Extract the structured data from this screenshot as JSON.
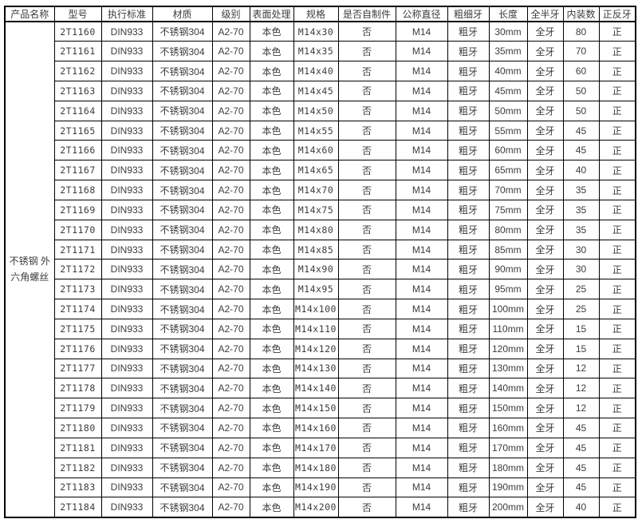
{
  "colors": {
    "border": "#000000",
    "text": "#3c3c3c",
    "background": "#ffffff"
  },
  "table": {
    "product_name": "不锈钢 外六角螺丝",
    "headers": [
      "产品名称",
      "型号",
      "执行标准",
      "材质",
      "级别",
      "表面处理",
      "规格",
      "是否自制件",
      "公称直径",
      "粗细牙",
      "长度",
      "全半牙",
      "内装数",
      "正反牙"
    ],
    "rows": [
      [
        "2T1160",
        "DIN933",
        "不锈钢304",
        "A2-70",
        "本色",
        "M14x30",
        "否",
        "M14",
        "粗牙",
        "30mm",
        "全牙",
        "80",
        "正"
      ],
      [
        "2T1161",
        "DIN933",
        "不锈钢304",
        "A2-70",
        "本色",
        "M14x35",
        "否",
        "M14",
        "粗牙",
        "35mm",
        "全牙",
        "70",
        "正"
      ],
      [
        "2T1162",
        "DIN933",
        "不锈钢304",
        "A2-70",
        "本色",
        "M14x40",
        "否",
        "M14",
        "粗牙",
        "40mm",
        "全牙",
        "60",
        "正"
      ],
      [
        "2T1163",
        "DIN933",
        "不锈钢304",
        "A2-70",
        "本色",
        "M14x45",
        "否",
        "M14",
        "粗牙",
        "45mm",
        "全牙",
        "50",
        "正"
      ],
      [
        "2T1164",
        "DIN933",
        "不锈钢304",
        "A2-70",
        "本色",
        "M14x50",
        "否",
        "M14",
        "粗牙",
        "50mm",
        "全牙",
        "50",
        "正"
      ],
      [
        "2T1165",
        "DIN933",
        "不锈钢304",
        "A2-70",
        "本色",
        "M14x55",
        "否",
        "M14",
        "粗牙",
        "55mm",
        "全牙",
        "45",
        "正"
      ],
      [
        "2T1166",
        "DIN933",
        "不锈钢304",
        "A2-70",
        "本色",
        "M14x60",
        "否",
        "M14",
        "粗牙",
        "60mm",
        "全牙",
        "45",
        "正"
      ],
      [
        "2T1167",
        "DIN933",
        "不锈钢304",
        "A2-70",
        "本色",
        "M14x65",
        "否",
        "M14",
        "粗牙",
        "65mm",
        "全牙",
        "40",
        "正"
      ],
      [
        "2T1168",
        "DIN933",
        "不锈钢304",
        "A2-70",
        "本色",
        "M14x70",
        "否",
        "M14",
        "粗牙",
        "70mm",
        "全牙",
        "35",
        "正"
      ],
      [
        "2T1169",
        "DIN933",
        "不锈钢304",
        "A2-70",
        "本色",
        "M14x75",
        "否",
        "M14",
        "粗牙",
        "75mm",
        "全牙",
        "35",
        "正"
      ],
      [
        "2T1170",
        "DIN933",
        "不锈钢304",
        "A2-70",
        "本色",
        "M14x80",
        "否",
        "M14",
        "粗牙",
        "80mm",
        "全牙",
        "35",
        "正"
      ],
      [
        "2T1171",
        "DIN933",
        "不锈钢304",
        "A2-70",
        "本色",
        "M14x85",
        "否",
        "M14",
        "粗牙",
        "85mm",
        "全牙",
        "30",
        "正"
      ],
      [
        "2T1172",
        "DIN933",
        "不锈钢304",
        "A2-70",
        "本色",
        "M14x90",
        "否",
        "M14",
        "粗牙",
        "90mm",
        "全牙",
        "30",
        "正"
      ],
      [
        "2T1173",
        "DIN933",
        "不锈钢304",
        "A2-70",
        "本色",
        "M14x95",
        "否",
        "M14",
        "粗牙",
        "95mm",
        "全牙",
        "25",
        "正"
      ],
      [
        "2T1174",
        "DIN933",
        "不锈钢304",
        "A2-70",
        "本色",
        "M14x100",
        "否",
        "M14",
        "粗牙",
        "100mm",
        "全牙",
        "25",
        "正"
      ],
      [
        "2T1175",
        "DIN933",
        "不锈钢304",
        "A2-70",
        "本色",
        "M14x110",
        "否",
        "M14",
        "粗牙",
        "110mm",
        "全牙",
        "15",
        "正"
      ],
      [
        "2T1176",
        "DIN933",
        "不锈钢304",
        "A2-70",
        "本色",
        "M14x120",
        "否",
        "M14",
        "粗牙",
        "120mm",
        "全牙",
        "15",
        "正"
      ],
      [
        "2T1177",
        "DIN933",
        "不锈钢304",
        "A2-70",
        "本色",
        "M14x130",
        "否",
        "M14",
        "粗牙",
        "130mm",
        "全牙",
        "12",
        "正"
      ],
      [
        "2T1178",
        "DIN933",
        "不锈钢304",
        "A2-70",
        "本色",
        "M14x140",
        "否",
        "M14",
        "粗牙",
        "140mm",
        "全牙",
        "12",
        "正"
      ],
      [
        "2T1179",
        "DIN933",
        "不锈钢304",
        "A2-70",
        "本色",
        "M14x150",
        "否",
        "M14",
        "粗牙",
        "150mm",
        "全牙",
        "12",
        "正"
      ],
      [
        "2T1180",
        "DIN933",
        "不锈钢304",
        "A2-70",
        "本色",
        "M14x160",
        "否",
        "M14",
        "粗牙",
        "160mm",
        "全牙",
        "45",
        "正"
      ],
      [
        "2T1181",
        "DIN933",
        "不锈钢304",
        "A2-70",
        "本色",
        "M14x170",
        "否",
        "M14",
        "粗牙",
        "170mm",
        "全牙",
        "45",
        "正"
      ],
      [
        "2T1182",
        "DIN933",
        "不锈钢304",
        "A2-70",
        "本色",
        "M14x180",
        "否",
        "M14",
        "粗牙",
        "180mm",
        "全牙",
        "45",
        "正"
      ],
      [
        "2T1183",
        "DIN933",
        "不锈钢304",
        "A2-70",
        "本色",
        "M14x190",
        "否",
        "M14",
        "粗牙",
        "190mm",
        "全牙",
        "45",
        "正"
      ],
      [
        "2T1184",
        "DIN933",
        "不锈钢304",
        "A2-70",
        "本色",
        "M14x200",
        "否",
        "M14",
        "粗牙",
        "200mm",
        "全牙",
        "40",
        "正"
      ]
    ]
  }
}
